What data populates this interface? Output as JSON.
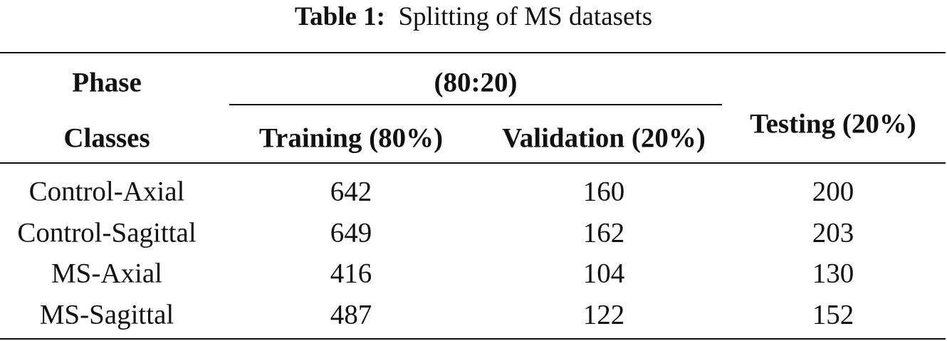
{
  "caption": {
    "label": "Table 1:",
    "text": "Splitting of MS datasets"
  },
  "table": {
    "header": {
      "phase": "Phase",
      "classes": "Classes",
      "split": "(80:20)",
      "training": "Training (80%)",
      "validation": "Validation (20%)",
      "testing": "Testing (20%)"
    },
    "rows": [
      [
        "Control-Axial",
        642,
        160,
        200
      ],
      [
        "Control-Sagittal",
        649,
        162,
        203
      ],
      [
        "MS-Axial",
        416,
        104,
        130
      ],
      [
        "MS-Sagittal",
        487,
        122,
        152
      ]
    ]
  }
}
